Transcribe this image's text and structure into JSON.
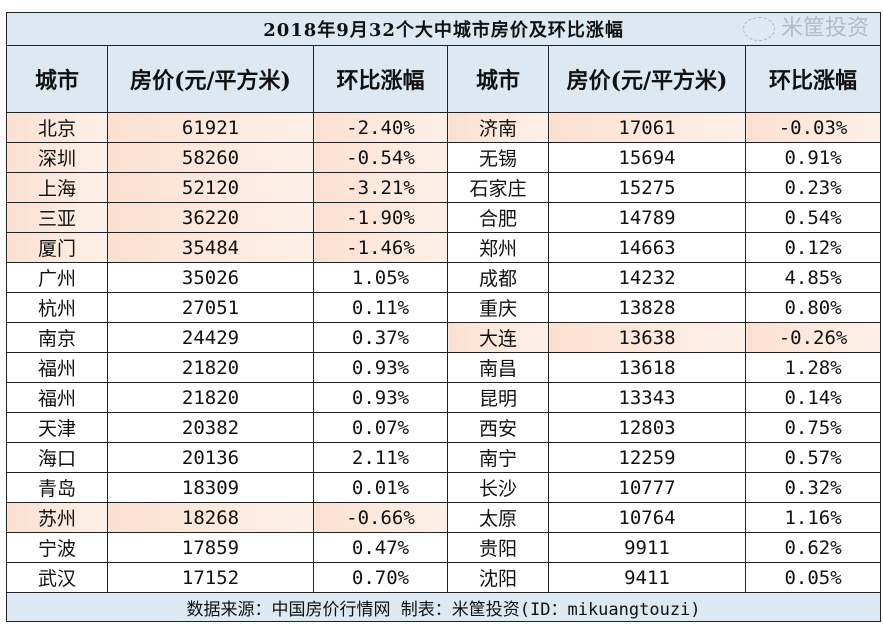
{
  "title": "2018年9月32个大中城市房价及环比涨幅",
  "headers": [
    "城市",
    "房价(元/平方米)",
    "环比涨幅",
    "城市",
    "房价(元/平方米)",
    "环比涨幅"
  ],
  "rows": [
    {
      "l": {
        "city": "北京",
        "price": "61921",
        "change": "-2.40%",
        "hl": true
      },
      "r": {
        "city": "济南",
        "price": "17061",
        "change": "-0.03%",
        "hl": true
      }
    },
    {
      "l": {
        "city": "深圳",
        "price": "58260",
        "change": "-0.54%",
        "hl": true
      },
      "r": {
        "city": "无锡",
        "price": "15694",
        "change": "0.91%",
        "hl": false
      }
    },
    {
      "l": {
        "city": "上海",
        "price": "52120",
        "change": "-3.21%",
        "hl": true
      },
      "r": {
        "city": "石家庄",
        "price": "15275",
        "change": "0.23%",
        "hl": false
      }
    },
    {
      "l": {
        "city": "三亚",
        "price": "36220",
        "change": "-1.90%",
        "hl": true
      },
      "r": {
        "city": "合肥",
        "price": "14789",
        "change": "0.54%",
        "hl": false
      }
    },
    {
      "l": {
        "city": "厦门",
        "price": "35484",
        "change": "-1.46%",
        "hl": true
      },
      "r": {
        "city": "郑州",
        "price": "14663",
        "change": "0.12%",
        "hl": false
      }
    },
    {
      "l": {
        "city": "广州",
        "price": "35026",
        "change": "1.05%",
        "hl": false
      },
      "r": {
        "city": "成都",
        "price": "14232",
        "change": "4.85%",
        "hl": false
      }
    },
    {
      "l": {
        "city": "杭州",
        "price": "27051",
        "change": "0.11%",
        "hl": false
      },
      "r": {
        "city": "重庆",
        "price": "13828",
        "change": "0.80%",
        "hl": false
      }
    },
    {
      "l": {
        "city": "南京",
        "price": "24429",
        "change": "0.37%",
        "hl": false
      },
      "r": {
        "city": "大连",
        "price": "13638",
        "change": "-0.26%",
        "hl": true
      }
    },
    {
      "l": {
        "city": "福州",
        "price": "21820",
        "change": "0.93%",
        "hl": false
      },
      "r": {
        "city": "南昌",
        "price": "13618",
        "change": "1.28%",
        "hl": false
      }
    },
    {
      "l": {
        "city": "福州",
        "price": "21820",
        "change": "0.93%",
        "hl": false
      },
      "r": {
        "city": "昆明",
        "price": "13343",
        "change": "0.14%",
        "hl": false
      }
    },
    {
      "l": {
        "city": "天津",
        "price": "20382",
        "change": "0.07%",
        "hl": false
      },
      "r": {
        "city": "西安",
        "price": "12803",
        "change": "0.75%",
        "hl": false
      }
    },
    {
      "l": {
        "city": "海口",
        "price": "20136",
        "change": "2.11%",
        "hl": false
      },
      "r": {
        "city": "南宁",
        "price": "12259",
        "change": "0.57%",
        "hl": false
      }
    },
    {
      "l": {
        "city": "青岛",
        "price": "18309",
        "change": "0.01%",
        "hl": false
      },
      "r": {
        "city": "长沙",
        "price": "10777",
        "change": "0.32%",
        "hl": false
      }
    },
    {
      "l": {
        "city": "苏州",
        "price": "18268",
        "change": "-0.66%",
        "hl": true
      },
      "r": {
        "city": "太原",
        "price": "10764",
        "change": "1.16%",
        "hl": false
      }
    },
    {
      "l": {
        "city": "宁波",
        "price": "17859",
        "change": "0.47%",
        "hl": false
      },
      "r": {
        "city": "贵阳",
        "price": "9911",
        "change": "0.62%",
        "hl": false
      }
    },
    {
      "l": {
        "city": "武汉",
        "price": "17152",
        "change": "0.70%",
        "hl": false
      },
      "r": {
        "city": "沈阳",
        "price": "9411",
        "change": "0.05%",
        "hl": false
      }
    }
  ],
  "footer": "数据来源：中国房价行情网 制表：米筐投资(ID：mikuangtouzi)",
  "watermark": "米筐投资"
}
